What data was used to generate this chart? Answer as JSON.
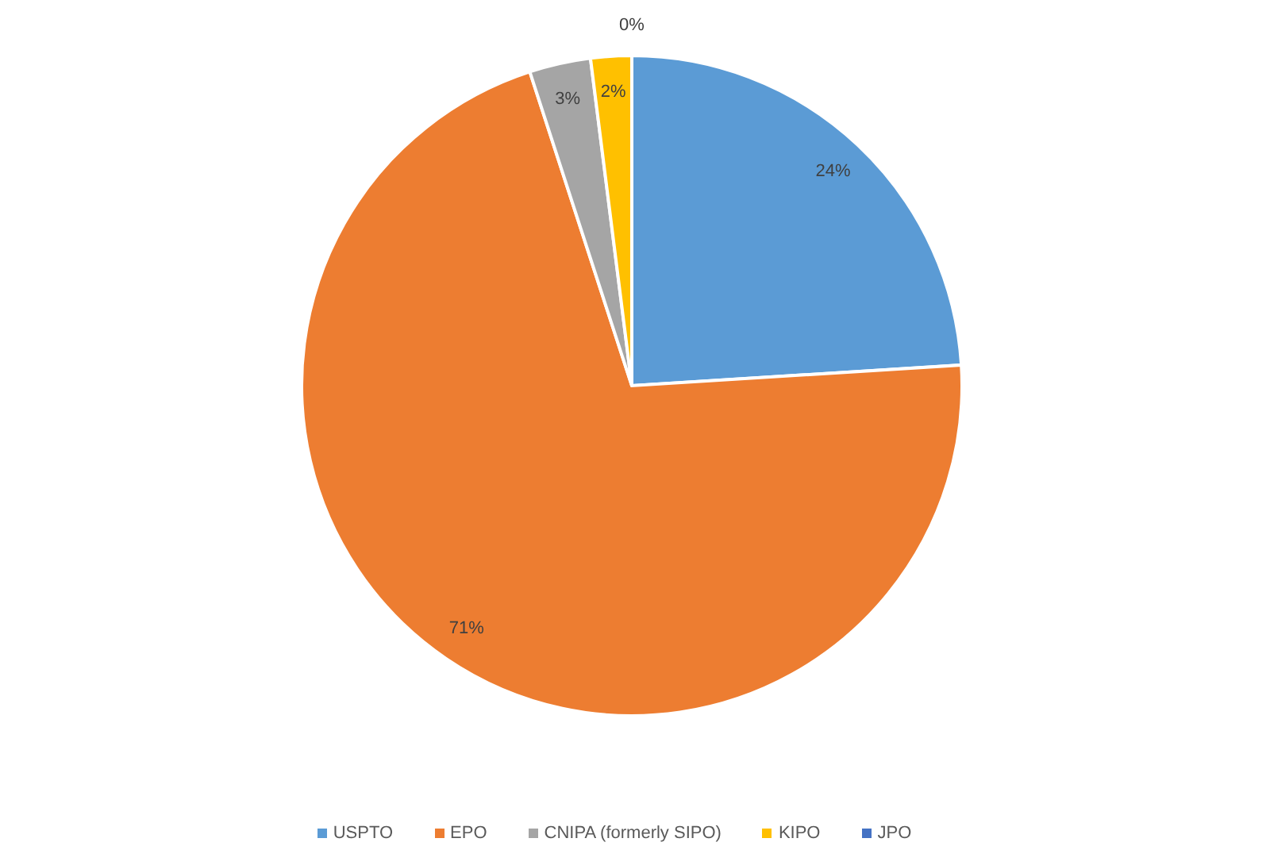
{
  "chart_data": {
    "type": "pie",
    "categories": [
      "USPTO",
      "EPO",
      "CNIPA (formerly SIPO)",
      "KIPO",
      "JPO"
    ],
    "values": [
      24,
      71,
      3,
      2,
      0
    ],
    "colors": [
      "#5b9bd5",
      "#ed7d31",
      "#a5a5a5",
      "#ffc000",
      "#4472c4"
    ],
    "value_labels": [
      "24%",
      "71%",
      "3%",
      "2%",
      "0%"
    ],
    "legend": "bottom"
  }
}
